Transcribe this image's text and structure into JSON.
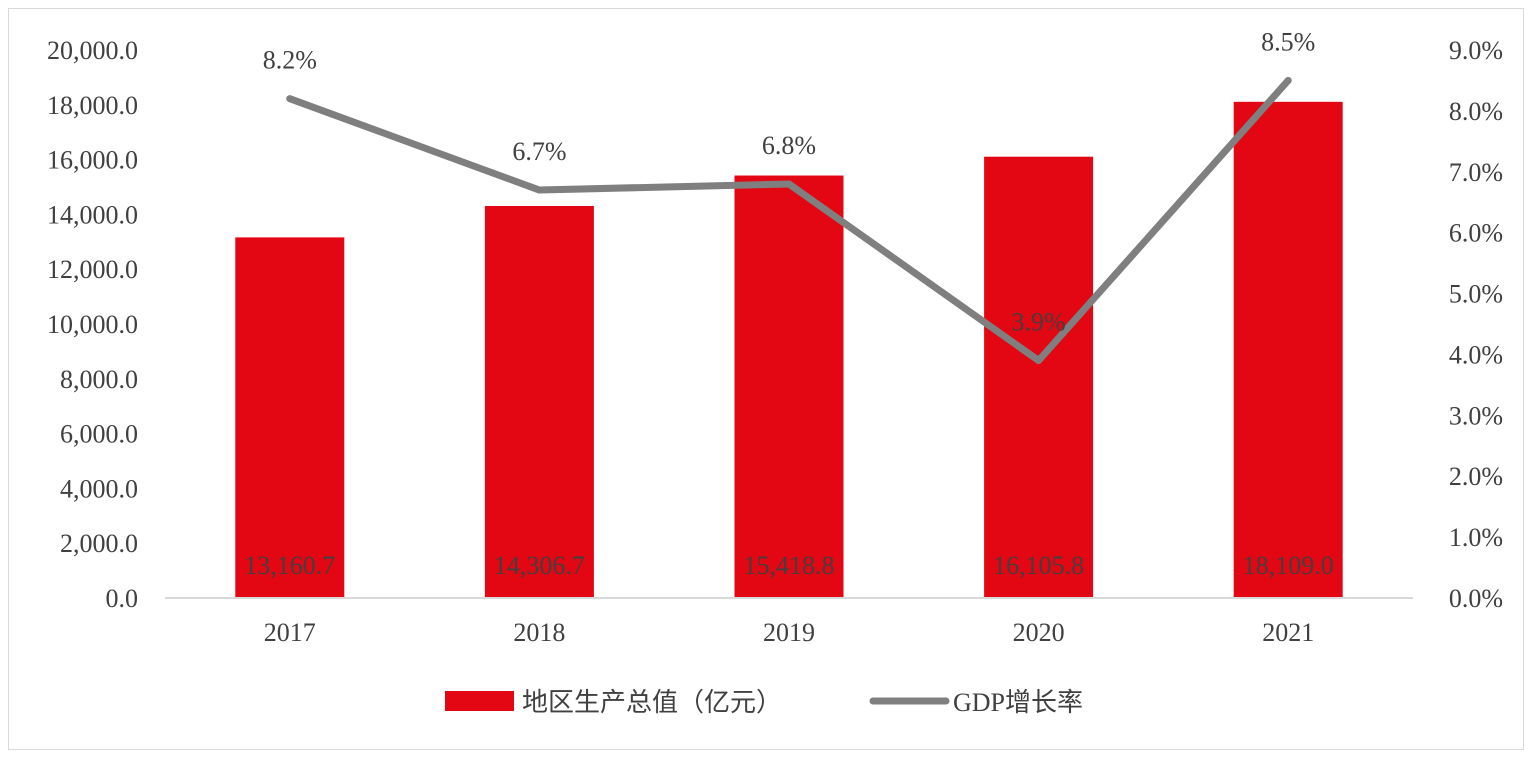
{
  "chart_data": {
    "type": "bar",
    "categories": [
      "2017",
      "2018",
      "2019",
      "2020",
      "2021"
    ],
    "series": [
      {
        "name": "地区生产总值（亿元）",
        "type": "bar",
        "axis": "left",
        "values": [
          13160.7,
          14306.7,
          15418.8,
          16105.8,
          18109.0
        ],
        "labels": [
          "13,160.7",
          "14,306.7",
          "15,418.8",
          "16,105.8",
          "18,109.0"
        ],
        "color": "#e30613"
      },
      {
        "name": "GDP增长率",
        "type": "line",
        "axis": "right",
        "values": [
          8.2,
          6.7,
          6.8,
          3.9,
          8.5
        ],
        "labels": [
          "8.2%",
          "6.7%",
          "6.8%",
          "3.9%",
          "8.5%"
        ],
        "color": "#7f7f7f"
      }
    ],
    "y_left": {
      "ylim": [
        0,
        20000
      ],
      "ticks": [
        "0.0",
        "2,000.0",
        "4,000.0",
        "6,000.0",
        "8,000.0",
        "10,000.0",
        "12,000.0",
        "14,000.0",
        "16,000.0",
        "18,000.0",
        "20,000.0"
      ]
    },
    "y_right": {
      "ylim": [
        0,
        9
      ],
      "ticks": [
        "0.0%",
        "1.0%",
        "2.0%",
        "3.0%",
        "4.0%",
        "5.0%",
        "6.0%",
        "7.0%",
        "8.0%",
        "9.0%"
      ]
    },
    "grid": false,
    "legend": "bottom"
  },
  "colors": {
    "bar": "#e30613",
    "line": "#7f7f7f",
    "text": "#404040",
    "axis": "#d9d9d9"
  }
}
